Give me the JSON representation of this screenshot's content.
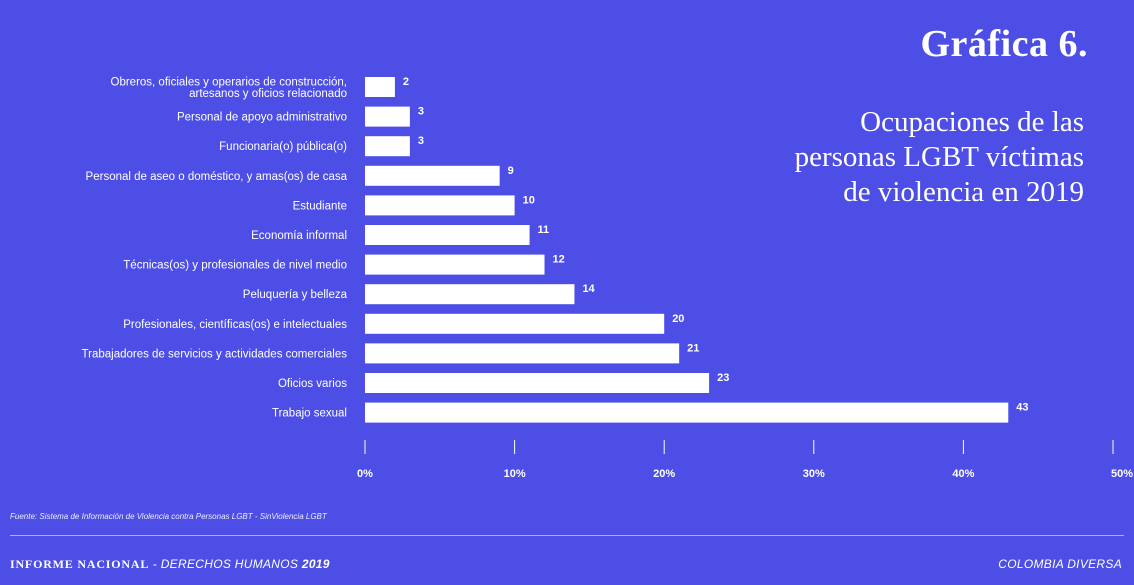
{
  "header": {
    "chart_number": "Gráfica 6.",
    "title": "Ocupaciones de las\npersonas LGBT víctimas\nde violencia en 2019"
  },
  "chart_data": {
    "type": "bar",
    "orientation": "horizontal",
    "categories": [
      [
        "Obreros, oficiales y operarios de construcción,",
        "artesanos y oficios relacionado"
      ],
      [
        "Personal de apoyo administrativo"
      ],
      [
        "Funcionaria(o) pública(o)"
      ],
      [
        "Personal de aseo o doméstico, y amas(os) de casa"
      ],
      [
        "Estudiante"
      ],
      [
        "Economía informal"
      ],
      [
        "Técnicas(os) y profesionales de nivel medio"
      ],
      [
        "Peluquería y belleza"
      ],
      [
        "Profesionales, científicas(os) e intelectuales"
      ],
      [
        "Trabajadores de servicios y actividades comerciales"
      ],
      [
        "Oficios varios"
      ],
      [
        "Trabajo sexual"
      ]
    ],
    "values": [
      2,
      3,
      3,
      9,
      10,
      11,
      12,
      14,
      20,
      21,
      23,
      43
    ],
    "value_labels": [
      "2",
      "3",
      "3",
      "9",
      "10",
      "11",
      "12",
      "14",
      "20",
      "21",
      "23",
      "43"
    ],
    "xlim": [
      0,
      50
    ],
    "x_ticks": [
      0,
      10,
      20,
      30,
      40,
      50
    ],
    "x_tick_labels": [
      "0%",
      "10%",
      "20%",
      "30%",
      "40%",
      "50%"
    ],
    "bar_color": "#ffffff",
    "background_color": "#4d4ee6"
  },
  "source": "Fuente: Sistema de Información de Violencia contra Personas LGBT - SinViolencia LGBT",
  "footer": {
    "report": "INFORME NACIONAL",
    "separator": " - ",
    "subject": "DERECHOS HUMANOS ",
    "year": "2019",
    "organization": "COLOMBIA DIVERSA"
  }
}
